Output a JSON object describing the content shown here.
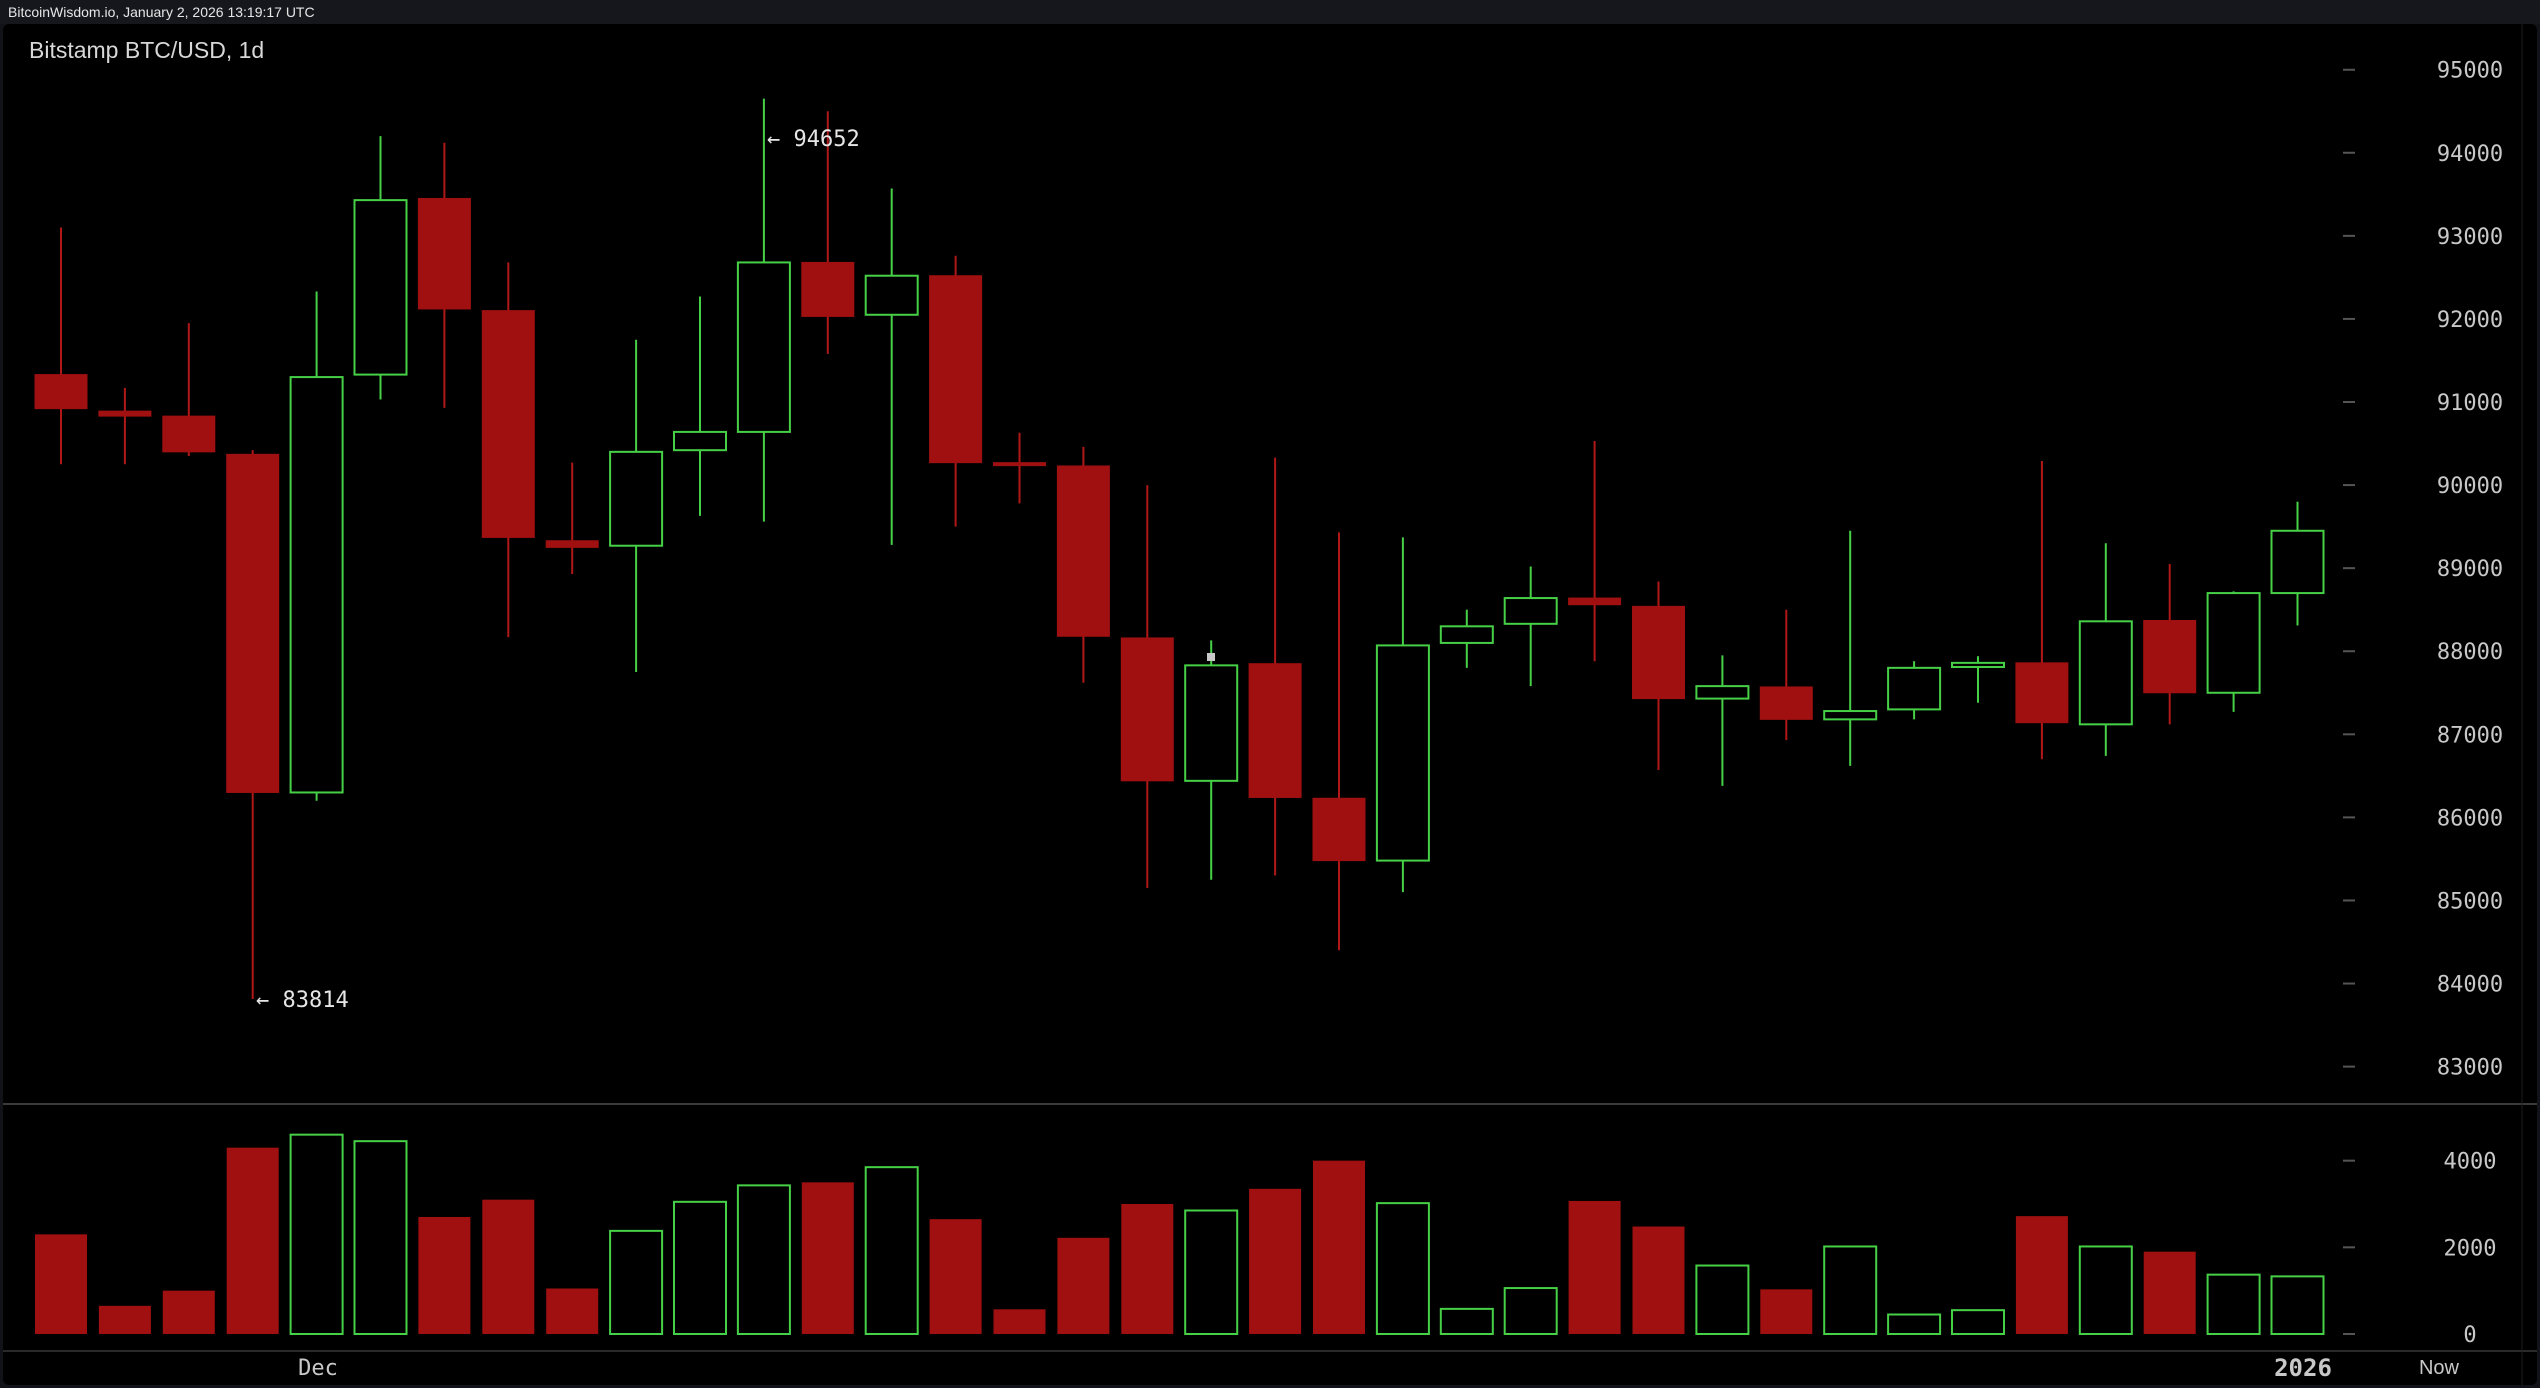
{
  "header": {
    "source": "BitcoinWisdom.io, January 2, 2026 13:19:17 UTC",
    "title": "Bitstamp BTC/USD, 1d"
  },
  "annotations": {
    "high": "← 94652",
    "low": "← 83814"
  },
  "x_labels": {
    "dec": "Dec",
    "year": "2026",
    "now": "Now"
  },
  "colors": {
    "up": "#46d046",
    "down": "#a01010",
    "background": "#000000",
    "axis_text": "#c8c8c8"
  },
  "chart_data": {
    "type": "candlestick",
    "title": "Bitstamp BTC/USD, 1d",
    "price_axis": {
      "ticks": [
        83000,
        84000,
        85000,
        86000,
        87000,
        88000,
        89000,
        90000,
        91000,
        92000,
        93000,
        94000,
        95000
      ],
      "range": [
        82550,
        95550
      ]
    },
    "volume_axis": {
      "ticks": [
        0,
        2000,
        4000
      ],
      "range": [
        0,
        4800
      ]
    },
    "candles": [
      {
        "o": 91330,
        "h": 93100,
        "l": 90250,
        "c": 90920,
        "v": 2300
      },
      {
        "o": 90890,
        "h": 91170,
        "l": 90250,
        "c": 90830,
        "v": 650
      },
      {
        "o": 90830,
        "h": 91950,
        "l": 90350,
        "c": 90400,
        "v": 1000
      },
      {
        "o": 90370,
        "h": 90420,
        "l": 83814,
        "c": 86300,
        "v": 4300
      },
      {
        "o": 86300,
        "h": 92330,
        "l": 86200,
        "c": 91300,
        "v": 4600
      },
      {
        "o": 91330,
        "h": 94200,
        "l": 91030,
        "c": 93430,
        "v": 4450
      },
      {
        "o": 93450,
        "h": 94120,
        "l": 90930,
        "c": 92120,
        "v": 2700
      },
      {
        "o": 92100,
        "h": 92680,
        "l": 88170,
        "c": 89370,
        "v": 3100
      },
      {
        "o": 89330,
        "h": 90270,
        "l": 88930,
        "c": 89250,
        "v": 1050
      },
      {
        "o": 89270,
        "h": 91750,
        "l": 87750,
        "c": 90400,
        "v": 2380
      },
      {
        "o": 90420,
        "h": 92270,
        "l": 89630,
        "c": 90640,
        "v": 3050
      },
      {
        "o": 90640,
        "h": 94652,
        "l": 89560,
        "c": 92680,
        "v": 3430
      },
      {
        "o": 92680,
        "h": 94500,
        "l": 91580,
        "c": 92030,
        "v": 3500
      },
      {
        "o": 92050,
        "h": 93570,
        "l": 89280,
        "c": 92520,
        "v": 3850
      },
      {
        "o": 92520,
        "h": 92760,
        "l": 89500,
        "c": 90270,
        "v": 2650
      },
      {
        "o": 90270,
        "h": 90630,
        "l": 89780,
        "c": 90260,
        "v": 570
      },
      {
        "o": 90230,
        "h": 90460,
        "l": 87620,
        "c": 88180,
        "v": 2220
      },
      {
        "o": 88160,
        "h": 90000,
        "l": 85150,
        "c": 86440,
        "v": 3000
      },
      {
        "o": 86440,
        "h": 88130,
        "l": 85250,
        "c": 87830,
        "v": 2850
      },
      {
        "o": 87850,
        "h": 90330,
        "l": 85300,
        "c": 86240,
        "v": 3350
      },
      {
        "o": 86230,
        "h": 89430,
        "l": 84400,
        "c": 85480,
        "v": 4000
      },
      {
        "o": 85480,
        "h": 89370,
        "l": 85100,
        "c": 88070,
        "v": 3020
      },
      {
        "o": 88100,
        "h": 88500,
        "l": 87800,
        "c": 88300,
        "v": 580
      },
      {
        "o": 88330,
        "h": 89020,
        "l": 87580,
        "c": 88640,
        "v": 1060
      },
      {
        "o": 88640,
        "h": 90530,
        "l": 87880,
        "c": 88560,
        "v": 3070
      },
      {
        "o": 88540,
        "h": 88840,
        "l": 86570,
        "c": 87430,
        "v": 2480
      },
      {
        "o": 87430,
        "h": 87950,
        "l": 86380,
        "c": 87580,
        "v": 1580
      },
      {
        "o": 87570,
        "h": 88500,
        "l": 86930,
        "c": 87180,
        "v": 1030
      },
      {
        "o": 87180,
        "h": 89450,
        "l": 86620,
        "c": 87280,
        "v": 2020
      },
      {
        "o": 87300,
        "h": 87880,
        "l": 87180,
        "c": 87800,
        "v": 450
      },
      {
        "o": 87810,
        "h": 87940,
        "l": 87380,
        "c": 87860,
        "v": 550
      },
      {
        "o": 87860,
        "h": 90290,
        "l": 86700,
        "c": 87140,
        "v": 2720
      },
      {
        "o": 87120,
        "h": 89300,
        "l": 86740,
        "c": 88360,
        "v": 2020
      },
      {
        "o": 88370,
        "h": 89050,
        "l": 87120,
        "c": 87500,
        "v": 1900
      },
      {
        "o": 87500,
        "h": 88720,
        "l": 87270,
        "c": 88700,
        "v": 1370
      },
      {
        "o": 88700,
        "h": 89800,
        "l": 88310,
        "c": 89450,
        "v": 1330
      }
    ]
  }
}
